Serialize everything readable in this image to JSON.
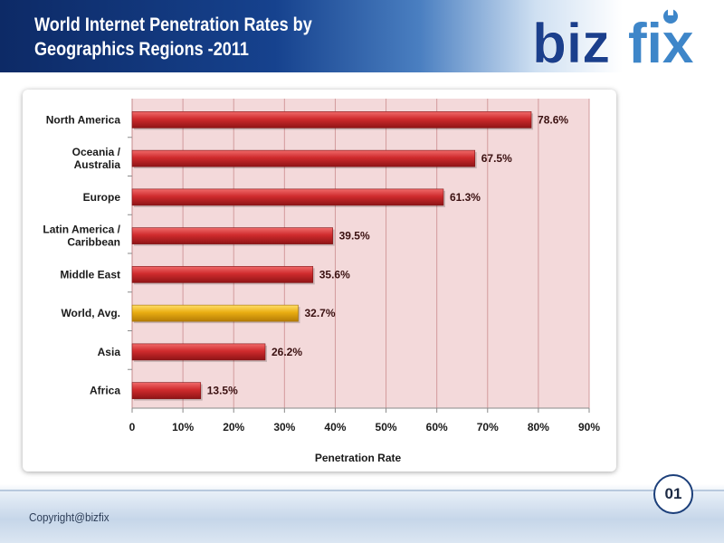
{
  "header": {
    "title_line1": "World Internet Penetration Rates by",
    "title_line2": "Geographics Regions -2011"
  },
  "logo": {
    "part1": "biz",
    "part2": "fix",
    "colors": {
      "biz": "#1b3f8c",
      "fix": "#3e86c9"
    },
    "icon": "wrench-icon"
  },
  "footer": {
    "copyright": "Copyright@bizfix",
    "page_number": "01"
  },
  "chart_data": {
    "type": "bar",
    "orientation": "horizontal",
    "categories": [
      "North America",
      "Oceania / Australia",
      "Europe",
      "Latin America / Caribbean",
      "Middle East",
      "World, Avg.",
      "Asia",
      "Africa"
    ],
    "category_label_lines": [
      [
        "North America"
      ],
      [
        "Oceania  /",
        "Australia"
      ],
      [
        "Europe"
      ],
      [
        "Latin America /",
        "Caribbean"
      ],
      [
        "Middle East"
      ],
      [
        "World, Avg."
      ],
      [
        "Asia"
      ],
      [
        "Africa"
      ]
    ],
    "values": [
      78.6,
      67.5,
      61.3,
      39.5,
      35.6,
      32.7,
      26.2,
      13.5
    ],
    "data_labels": [
      "78.6%",
      "67.5%",
      "61.3%",
      "39.5%",
      "35.6%",
      "32.7%",
      "26.2%",
      "13.5%"
    ],
    "highlight_category": "World, Avg.",
    "xlabel": "Penetration Rate",
    "xlim": [
      0,
      90
    ],
    "xticks": [
      0,
      10,
      20,
      30,
      40,
      50,
      60,
      70,
      80,
      90
    ],
    "xtick_labels": [
      "0",
      "10%",
      "20%",
      "30%",
      "40%",
      "50%",
      "60%",
      "70%",
      "80%",
      "90%"
    ],
    "grid": "vertical",
    "legend": "none",
    "colors": {
      "bar": "#c9282a",
      "bar_highlight": "#e3a80f",
      "plot_background": "#f3d9da",
      "gridline": "#d29a9c"
    }
  }
}
